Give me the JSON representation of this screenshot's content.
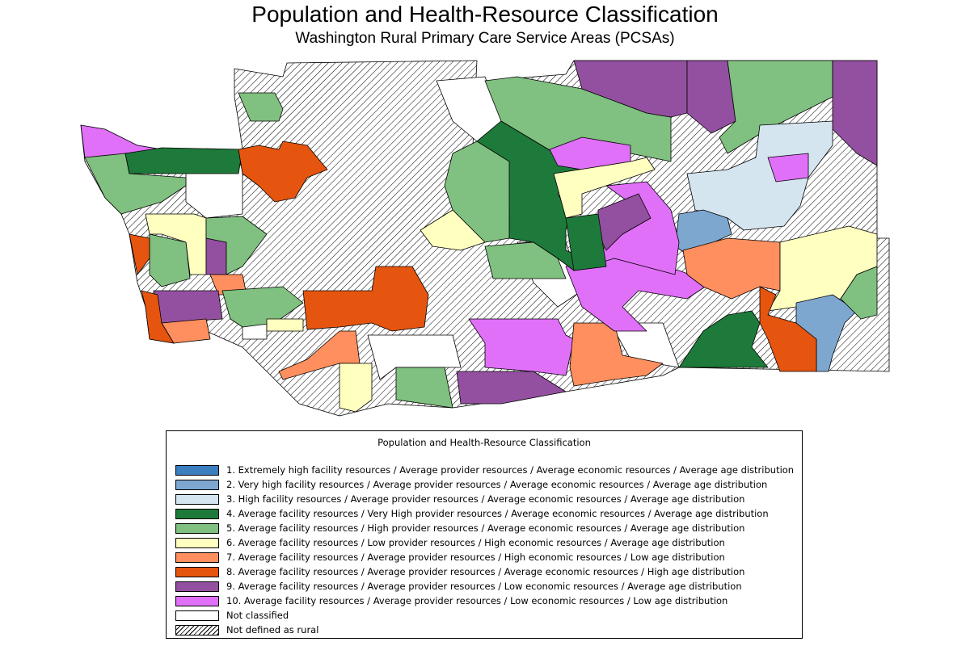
{
  "title": "Population and Health-Resource Classification",
  "subtitle": "Washington Rural Primary Care Service Areas (PCSAs)",
  "legend": {
    "title": "Population and Health-Resource Classification",
    "items": [
      {
        "label": "1. Extremely high facility resources / Average provider resources / Average economic resources / Average age distribution",
        "color": "#3B7FC0"
      },
      {
        "label": "2. Very high facility resources / Average provider resources / Average economic resources / Average age distribution",
        "color": "#7EA7D0"
      },
      {
        "label": "3. High facility resources / Average provider resources / Average economic resources / Average age distribution",
        "color": "#D4E5F0"
      },
      {
        "label": "4. Average facility resources / Very High provider resources / Average economic resources / Average age distribution",
        "color": "#1E7A3A"
      },
      {
        "label": "5. Average facility resources / High provider resources / Average economic resources / Average age distribution",
        "color": "#80C080"
      },
      {
        "label": "6. Average facility resources / Low provider resources / High economic resources / Average age distribution",
        "color": "#FFFFC0"
      },
      {
        "label": "7. Average facility resources / Average provider resources / High economic resources / Low age distribution",
        "color": "#FF8F5E"
      },
      {
        "label": "8. Average facility resources / Average provider resources / Average economic resources / High age distribution",
        "color": "#E5550F"
      },
      {
        "label": "9. Average facility resources / Average provider resources / Low economic resources / Average age distribution",
        "color": "#9450A0"
      },
      {
        "label": "10. Average facility resources / Average provider resources / Low economic resources / Low age distribution",
        "color": "#E070F8"
      },
      {
        "label": "Not classified",
        "color": "#FFFFFF"
      },
      {
        "label": "Not defined as rural",
        "color": "hatch"
      }
    ]
  }
}
